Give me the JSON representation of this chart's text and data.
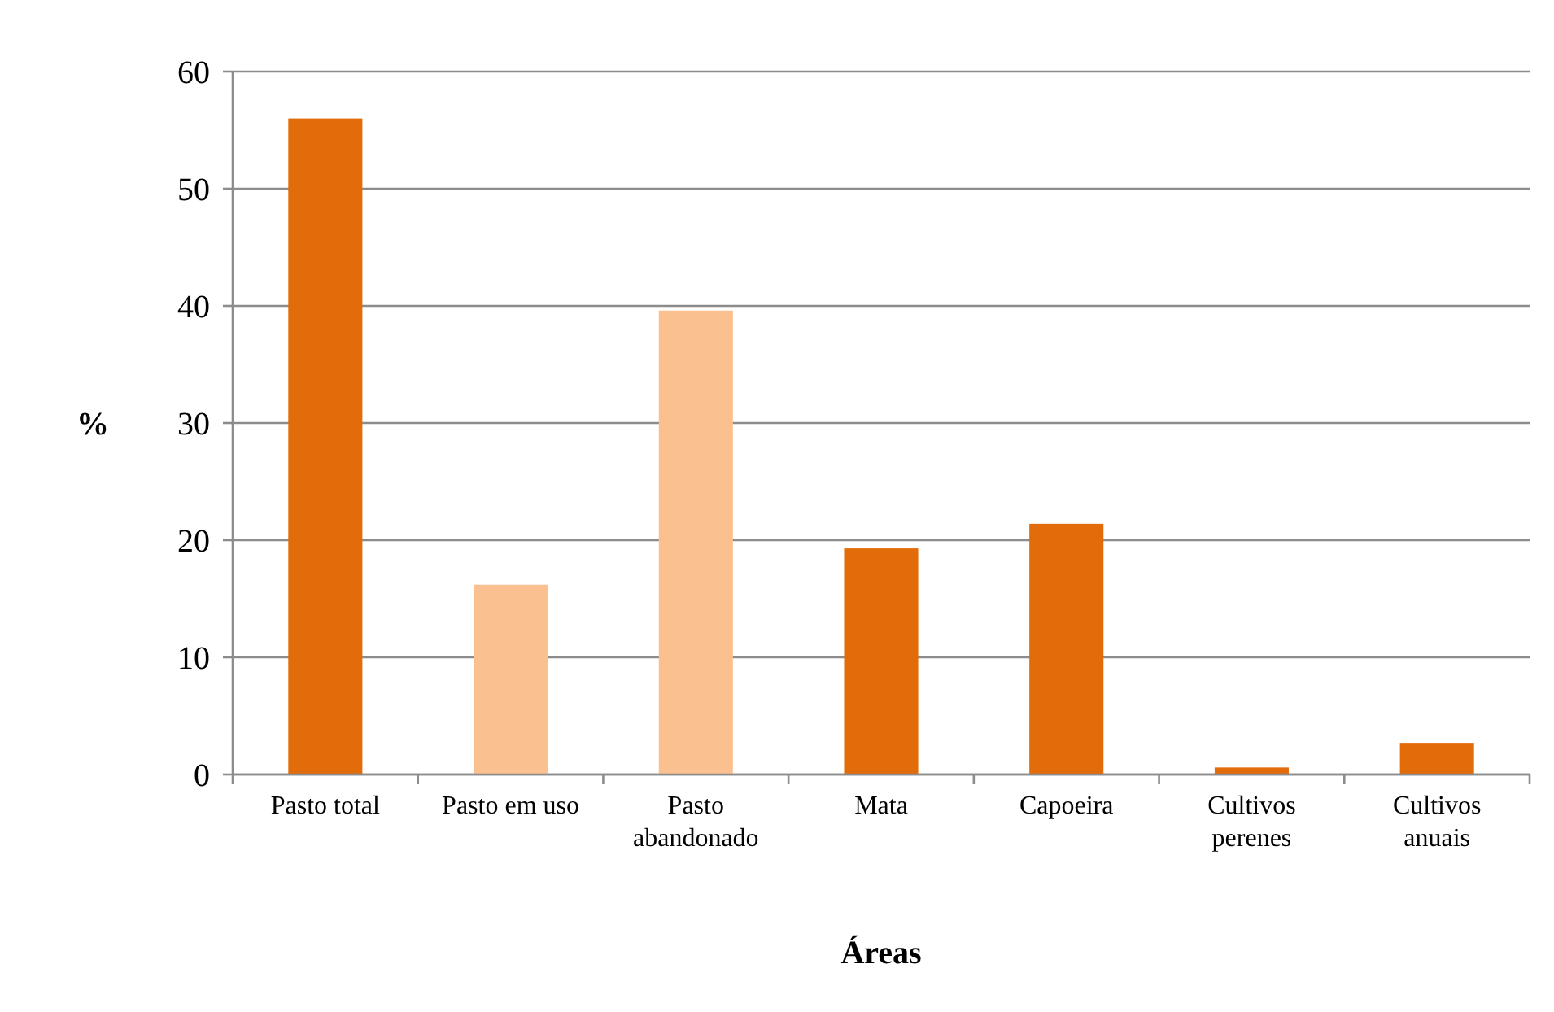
{
  "chart_data": {
    "type": "bar",
    "xlabel": "Áreas",
    "ylabel": "%",
    "categories": [
      "Pasto total",
      "Pasto em uso",
      "Pasto abandonado",
      "Mata",
      "Capoeira",
      "Cultivos perenes",
      "Cultivos anuais"
    ],
    "values": [
      56,
      16.2,
      39.6,
      19.3,
      21.4,
      0.6,
      2.7
    ],
    "colors": [
      "#e36c0a",
      "#fac090",
      "#fac090",
      "#e36c0a",
      "#e36c0a",
      "#e36c0a",
      "#e36c0a"
    ],
    "ylim": [
      0,
      60
    ],
    "yticks": [
      0,
      10,
      20,
      30,
      40,
      50,
      60
    ],
    "grid": "y"
  }
}
